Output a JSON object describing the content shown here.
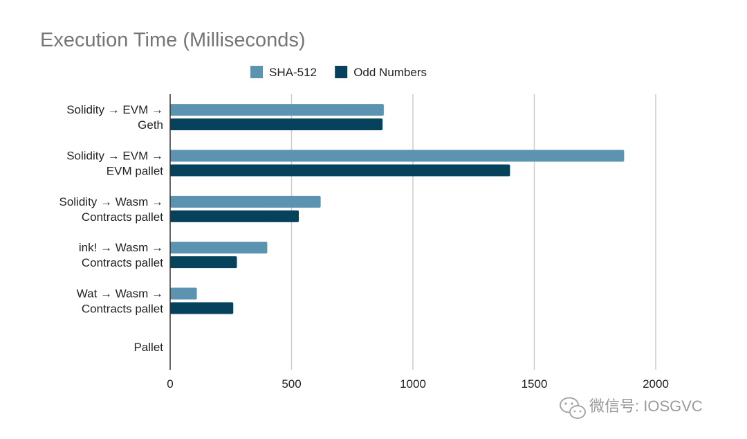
{
  "chart_data": {
    "type": "bar",
    "orientation": "horizontal",
    "title": "Execution Time (Milliseconds)",
    "xlabel": "",
    "ylabel": "",
    "xlim": [
      0,
      2000
    ],
    "xticks": [
      0,
      500,
      1000,
      1500,
      2000
    ],
    "grid": true,
    "legend_position": "top-center",
    "categories": [
      [
        "Solidity → EVM →",
        "Geth"
      ],
      [
        "Solidity → EVM →",
        "EVM pallet"
      ],
      [
        "Solidity → Wasm →",
        "Contracts pallet"
      ],
      [
        "ink! → Wasm →",
        "Contracts pallet"
      ],
      [
        "Wat → Wasm →",
        "Contracts pallet"
      ],
      [
        "Pallet"
      ]
    ],
    "series": [
      {
        "name": "SHA-512",
        "color": "#5b93b1",
        "values": [
          880,
          1870,
          620,
          400,
          110,
          0
        ]
      },
      {
        "name": "Odd Numbers",
        "color": "#06425c",
        "values": [
          875,
          1400,
          530,
          275,
          260,
          0
        ]
      }
    ]
  },
  "watermark": {
    "text": "微信号: IOSGVC",
    "icon": "wechat-icon"
  }
}
